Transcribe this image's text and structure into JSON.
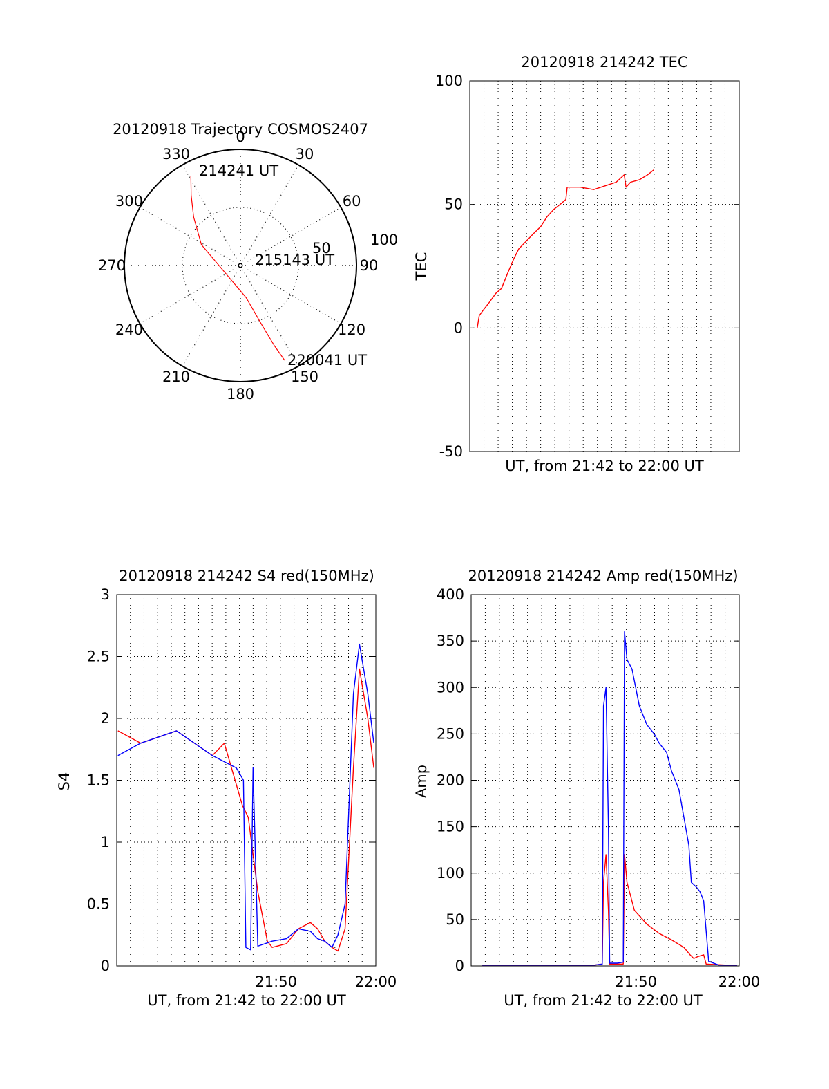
{
  "chart_data": [
    {
      "type": "polar-trajectory",
      "title": "20120918 Trajectory COSMOS2407",
      "angle_labels": [
        "0",
        "30",
        "60",
        "90",
        "120",
        "150",
        "180",
        "210",
        "240",
        "270",
        "300",
        "330"
      ],
      "radial_labels": [
        "50",
        "100"
      ],
      "rlim": [
        0,
        100
      ],
      "grid": true,
      "trajectory_color": "#ff0000",
      "trajectory": [
        {
          "az": 331,
          "r": 88
        },
        {
          "az": 325,
          "r": 74
        },
        {
          "az": 316,
          "r": 58
        },
        {
          "az": 298,
          "r": 38
        },
        {
          "az": 250,
          "r": 15
        },
        {
          "az": 170,
          "r": 28
        },
        {
          "az": 160,
          "r": 55
        },
        {
          "az": 157,
          "r": 75
        },
        {
          "az": 155,
          "r": 90
        }
      ],
      "time_labels": [
        "214241 UT",
        "215143 UT",
        "220041 UT"
      ]
    },
    {
      "type": "line",
      "title": "20120918 214242 TEC",
      "xlabel": "UT, from 21:42 to 22:00 UT",
      "ylabel": "TEC",
      "xlim": [
        21.7,
        22.0
      ],
      "ylim": [
        -50,
        100
      ],
      "yticks": [
        "-50",
        "0",
        "50",
        "100"
      ],
      "grid": true,
      "series": [
        {
          "color": "#ff0000",
          "x": [
            21.7083,
            21.7105,
            21.7145,
            21.721,
            21.729,
            21.7353,
            21.742,
            21.749,
            21.7545,
            21.7625,
            21.7705,
            21.779,
            21.786,
            21.7935,
            21.8005,
            21.807,
            21.8085,
            21.823,
            21.838,
            21.863,
            21.872,
            21.874,
            21.879,
            21.889,
            21.898,
            21.905
          ],
          "y": [
            0,
            5,
            7,
            10,
            14,
            16,
            22,
            28,
            32,
            35,
            38,
            41,
            45,
            48,
            50,
            52,
            57,
            57,
            56,
            59,
            62,
            57,
            59,
            60,
            62,
            64
          ]
        }
      ]
    },
    {
      "type": "line",
      "title": "20120918 214242 S4 red(150MHz)",
      "xlabel": "UT, from 21:42 to 22:00 UT",
      "ylabel": "S4",
      "x_tick_labels": [
        "21:50",
        "22:00"
      ],
      "x_ticks": [
        21.8333,
        21.9167
      ],
      "xlim": [
        21.7,
        21.9167
      ],
      "ylim": [
        0,
        3
      ],
      "yticks": [
        "0",
        "0.5",
        "1",
        "1.5",
        "2",
        "2.5",
        "3"
      ],
      "grid": true,
      "series": [
        {
          "color": "#ff0000",
          "x": [
            21.701,
            21.72,
            21.75,
            21.78,
            21.79,
            21.805,
            21.81,
            21.814,
            21.818,
            21.826,
            21.83,
            21.842,
            21.852,
            21.862,
            21.868,
            21.874,
            21.88,
            21.885,
            21.891,
            21.898,
            21.903,
            21.91,
            21.915
          ],
          "y": [
            1.9,
            1.8,
            1.9,
            1.7,
            1.8,
            1.3,
            1.2,
            0.9,
            0.6,
            0.2,
            0.15,
            0.18,
            0.3,
            0.35,
            0.3,
            0.2,
            0.15,
            0.12,
            0.3,
            1.6,
            2.4,
            2.0,
            1.6
          ]
        },
        {
          "color": "#0000ff",
          "x": [
            21.701,
            21.72,
            21.75,
            21.78,
            21.8,
            21.806,
            21.808,
            21.812,
            21.814,
            21.818,
            21.83,
            21.842,
            21.852,
            21.862,
            21.868,
            21.874,
            21.88,
            21.885,
            21.891,
            21.898,
            21.903,
            21.91,
            21.915
          ],
          "y": [
            1.7,
            1.8,
            1.9,
            1.7,
            1.6,
            1.5,
            0.15,
            0.13,
            1.6,
            0.16,
            0.2,
            0.22,
            0.3,
            0.28,
            0.22,
            0.2,
            0.15,
            0.25,
            0.5,
            2.2,
            2.6,
            2.2,
            1.8
          ]
        }
      ]
    },
    {
      "type": "line",
      "title": "20120918 214242 Amp red(150MHz)",
      "xlabel": "UT, from 21:42 to 22:00 UT",
      "ylabel": "Amp",
      "x_tick_labels": [
        "21:50",
        "22:00"
      ],
      "x_ticks": [
        21.8333,
        21.9167
      ],
      "xlim": [
        21.7,
        21.9167
      ],
      "ylim": [
        0,
        400
      ],
      "yticks": [
        "0",
        "50",
        "100",
        "150",
        "200",
        "250",
        "300",
        "350",
        "400"
      ],
      "grid": true,
      "series": [
        {
          "color": "#ff0000",
          "x": [
            21.709,
            21.8,
            21.806,
            21.807,
            21.809,
            21.811,
            21.812,
            21.818,
            21.823,
            21.824,
            21.826,
            21.832,
            21.842,
            21.852,
            21.862,
            21.872,
            21.877,
            21.88,
            21.883,
            21.888,
            21.89,
            21.905,
            21.915
          ],
          "y": [
            1,
            1,
            2,
            90,
            120,
            60,
            2,
            2,
            2,
            120,
            90,
            60,
            45,
            35,
            28,
            20,
            12,
            8,
            10,
            12,
            2,
            1,
            1
          ]
        },
        {
          "color": "#0000ff",
          "x": [
            21.709,
            21.8,
            21.806,
            21.807,
            21.809,
            21.811,
            21.812,
            21.818,
            21.823,
            21.824,
            21.826,
            21.83,
            21.836,
            21.842,
            21.848,
            21.852,
            21.858,
            21.862,
            21.868,
            21.872,
            21.876,
            21.878,
            21.882,
            21.885,
            21.888,
            21.892,
            21.9,
            21.915
          ],
          "y": [
            1,
            1,
            2,
            280,
            300,
            150,
            3,
            3,
            4,
            360,
            330,
            320,
            280,
            260,
            250,
            240,
            230,
            210,
            190,
            160,
            130,
            90,
            85,
            80,
            70,
            5,
            1,
            1
          ]
        }
      ]
    }
  ]
}
